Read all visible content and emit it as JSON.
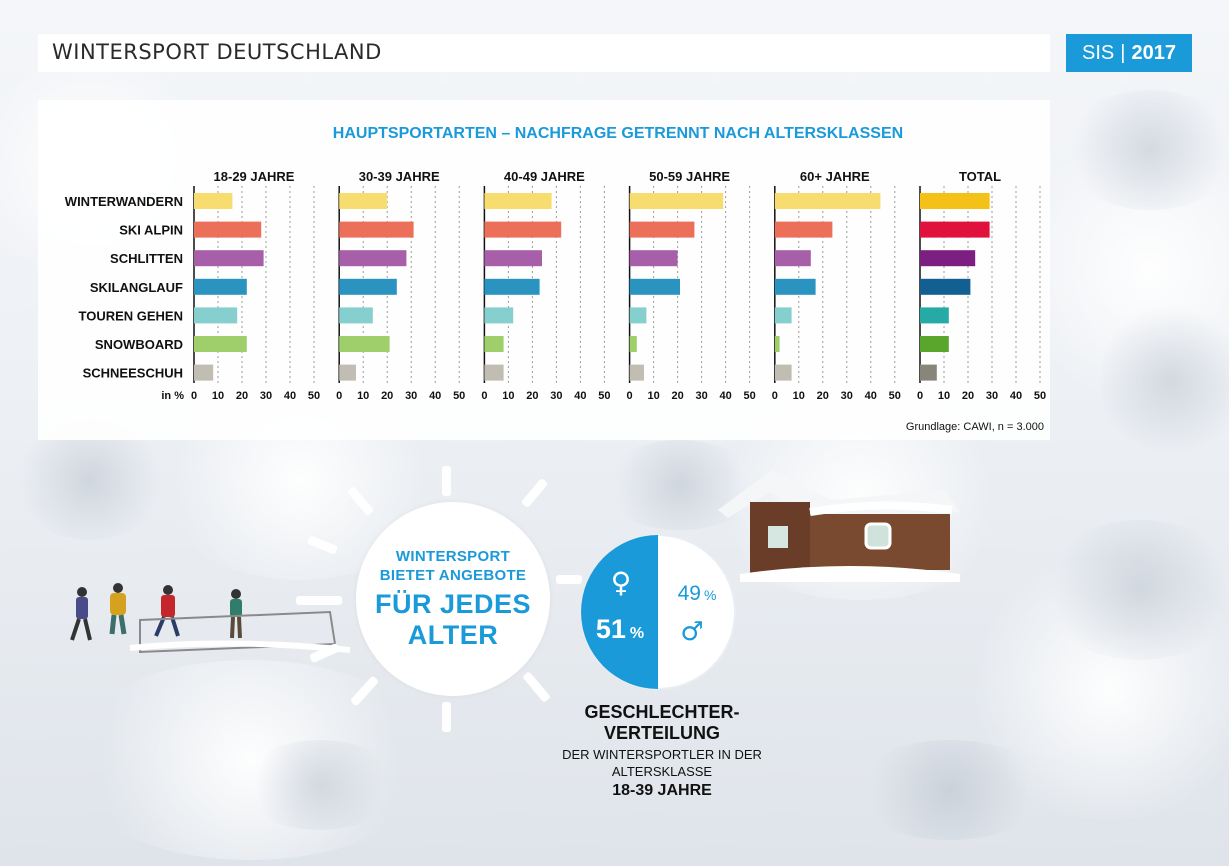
{
  "header": {
    "title": "WINTERSPORT DEUTSCHLAND"
  },
  "brand": {
    "name": "SIS",
    "separator": "|",
    "year": "2017"
  },
  "colors": {
    "accent": "#1a9ad9",
    "winterwandern": "#f7dc6f",
    "ski_alpin": "#ec7059",
    "schlitten": "#a65fa8",
    "skilanglauf": "#2a93c0",
    "touren": "#85cfcf",
    "snowboard": "#9fcf6a",
    "schneeschuh": "#c2bdb2",
    "total_winterwandern": "#f3c117",
    "total_ski_alpin": "#e0113c",
    "total_schlitten": "#7d1f80",
    "total_skilanglauf": "#125f92",
    "total_touren": "#26aaa6",
    "total_snowboard": "#5aa52c",
    "total_schneeschuh": "#8a8579"
  },
  "chart_data": {
    "type": "bar",
    "orientation": "horizontal",
    "title": "HAUPTSPORTARTEN – NACHFRAGE GETRENNT NACH ALTERSKLASSEN",
    "categories": [
      "WINTERWANDERN",
      "SKI ALPIN",
      "SCHLITTEN",
      "SKILANGLAUF",
      "TOUREN GEHEN",
      "SNOWBOARD",
      "SCHNEESCHUH"
    ],
    "unit_label": "in %",
    "xlim": [
      0,
      50
    ],
    "ticks": [
      "0",
      "10",
      "20",
      "30",
      "40",
      "50"
    ],
    "grid": true,
    "panels": [
      {
        "label": "18-29 JAHRE",
        "values": [
          16,
          28,
          29,
          22,
          18,
          22,
          8
        ]
      },
      {
        "label": "30-39 JAHRE",
        "values": [
          20,
          31,
          28,
          24,
          14,
          21,
          7
        ]
      },
      {
        "label": "40-49 JAHRE",
        "values": [
          28,
          32,
          24,
          23,
          12,
          8,
          8
        ]
      },
      {
        "label": "50-59 JAHRE",
        "values": [
          39,
          27,
          20,
          21,
          7,
          3,
          6
        ]
      },
      {
        "label": "60+ JAHRE",
        "values": [
          44,
          24,
          15,
          17,
          7,
          2,
          7
        ]
      },
      {
        "label": "TOTAL",
        "values": [
          29,
          29,
          23,
          21,
          12,
          12,
          7
        ]
      }
    ],
    "footnote": "Grundlage: CAWI, n = 3.000"
  },
  "sun": {
    "line1": "WINTERSPORT",
    "line2": "BIETET ANGEBOTE",
    "line3": "FÜR JEDES",
    "line4": "ALTER"
  },
  "gender": {
    "female_pct": "51",
    "male_pct": "49",
    "pct_sign": "%",
    "female_value": 51,
    "male_value": 49,
    "female_symbol": "♀",
    "male_symbol": "♂",
    "title_line1": "GESCHLECHTER-",
    "title_line2": "VERTEILUNG",
    "subtitle_line1": "DER WINTERSPORTLER IN DER",
    "subtitle_line2": "ALTERSKLASSE",
    "subtitle_line3": "18-39 JAHRE"
  }
}
